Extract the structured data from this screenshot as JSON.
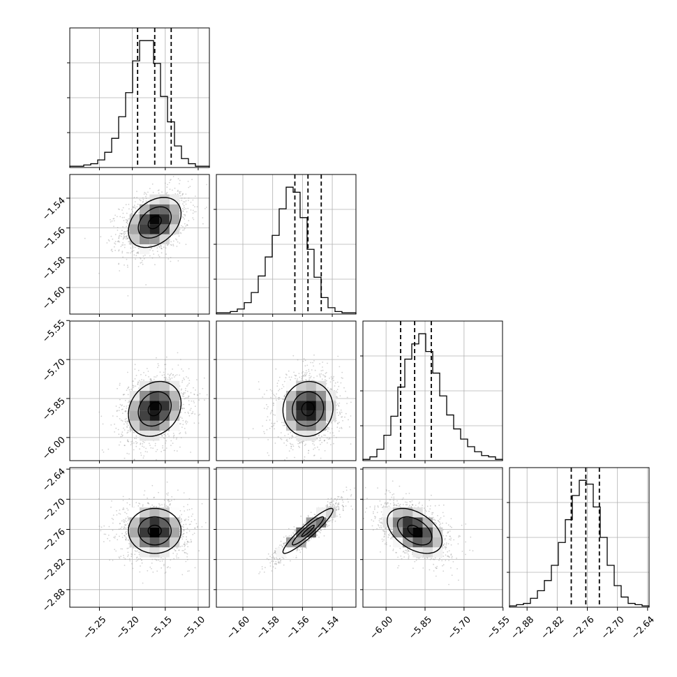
{
  "chart_data": {
    "type": "corner",
    "parameters": [
      {
        "index": 0,
        "range": [
          -5.295,
          -5.083
        ],
        "ticks": [
          -5.25,
          -5.2,
          -5.15,
          -5.1
        ],
        "tick_labels": [
          "−5.25",
          "−5.20",
          "−5.15",
          "−5.10"
        ]
      },
      {
        "index": 1,
        "range": [
          -1.6178,
          -1.5241
        ],
        "ticks": [
          -1.6,
          -1.58,
          -1.56,
          -1.54
        ],
        "tick_labels": [
          "−1.60",
          "−1.58",
          "−1.56",
          "−1.54"
        ]
      },
      {
        "index": 2,
        "range": [
          -6.089,
          -5.552
        ],
        "ticks": [
          -6.0,
          -5.85,
          -5.7,
          -5.55
        ],
        "tick_labels": [
          "−6.00",
          "−5.85",
          "−5.70",
          "−5.55"
        ]
      },
      {
        "index": 3,
        "range": [
          -2.915,
          -2.637
        ],
        "ticks": [
          -2.88,
          -2.82,
          -2.76,
          -2.7,
          -2.64
        ],
        "tick_labels": [
          "−2.88",
          "−2.82",
          "−2.76",
          "−2.70",
          "−2.64"
        ]
      }
    ],
    "quantiles": [
      [
        -5.192,
        -5.166,
        -5.141
      ],
      [
        -1.5651,
        -1.5563,
        -1.5474
      ],
      [
        -5.944,
        -5.89,
        -5.826
      ],
      [
        -2.792,
        -2.763,
        -2.736
      ]
    ],
    "histograms": [
      {
        "values": [
          1,
          1,
          2,
          3,
          6,
          12,
          23,
          40,
          59,
          84,
          100,
          100,
          82,
          56,
          36,
          17,
          7,
          3,
          1,
          1
        ],
        "ymax": 110
      },
      {
        "values": [
          1,
          1,
          2,
          4,
          9,
          17,
          30,
          45,
          62,
          83,
          100,
          96,
          76,
          51,
          29,
          13,
          5,
          2,
          1,
          1
        ],
        "ymax": 110
      },
      {
        "values": [
          1,
          3,
          9,
          20,
          35,
          58,
          80,
          92,
          100,
          86,
          69,
          51,
          36,
          25,
          17,
          11,
          7,
          4,
          3,
          1
        ],
        "ymax": 110
      },
      {
        "values": [
          1,
          2,
          3,
          7,
          13,
          21,
          33,
          51,
          69,
          88,
          100,
          97,
          79,
          55,
          33,
          17,
          8,
          3,
          2,
          1
        ],
        "ymax": 110
      }
    ],
    "pairs": [
      {
        "x": 0,
        "y": 1,
        "mean": [
          -5.166,
          -1.5563
        ],
        "sd": [
          0.025,
          0.0105
        ],
        "rho": 0.35
      },
      {
        "x": 0,
        "y": 2,
        "mean": [
          -5.166,
          -5.89
        ],
        "sd": [
          0.025,
          0.066
        ],
        "rho": 0.2
      },
      {
        "x": 1,
        "y": 2,
        "mean": [
          -1.5563,
          -5.89
        ],
        "sd": [
          0.0105,
          0.066
        ],
        "rho": 0.05
      },
      {
        "x": 0,
        "y": 3,
        "mean": [
          -5.166,
          -2.763
        ],
        "sd": [
          0.025,
          0.028
        ],
        "rho": 0.0
      },
      {
        "x": 1,
        "y": 3,
        "mean": [
          -1.5563,
          -2.763
        ],
        "sd": [
          0.0105,
          0.028
        ],
        "rho": 0.93
      },
      {
        "x": 2,
        "y": 3,
        "mean": [
          -5.89,
          -2.763
        ],
        "sd": [
          0.066,
          0.028
        ],
        "rho": -0.45
      }
    ],
    "grid": true,
    "colors": {
      "axis": "#000000",
      "grid": "#b0b0b0",
      "points": "#9a9a9a",
      "contour": "#000000"
    }
  }
}
